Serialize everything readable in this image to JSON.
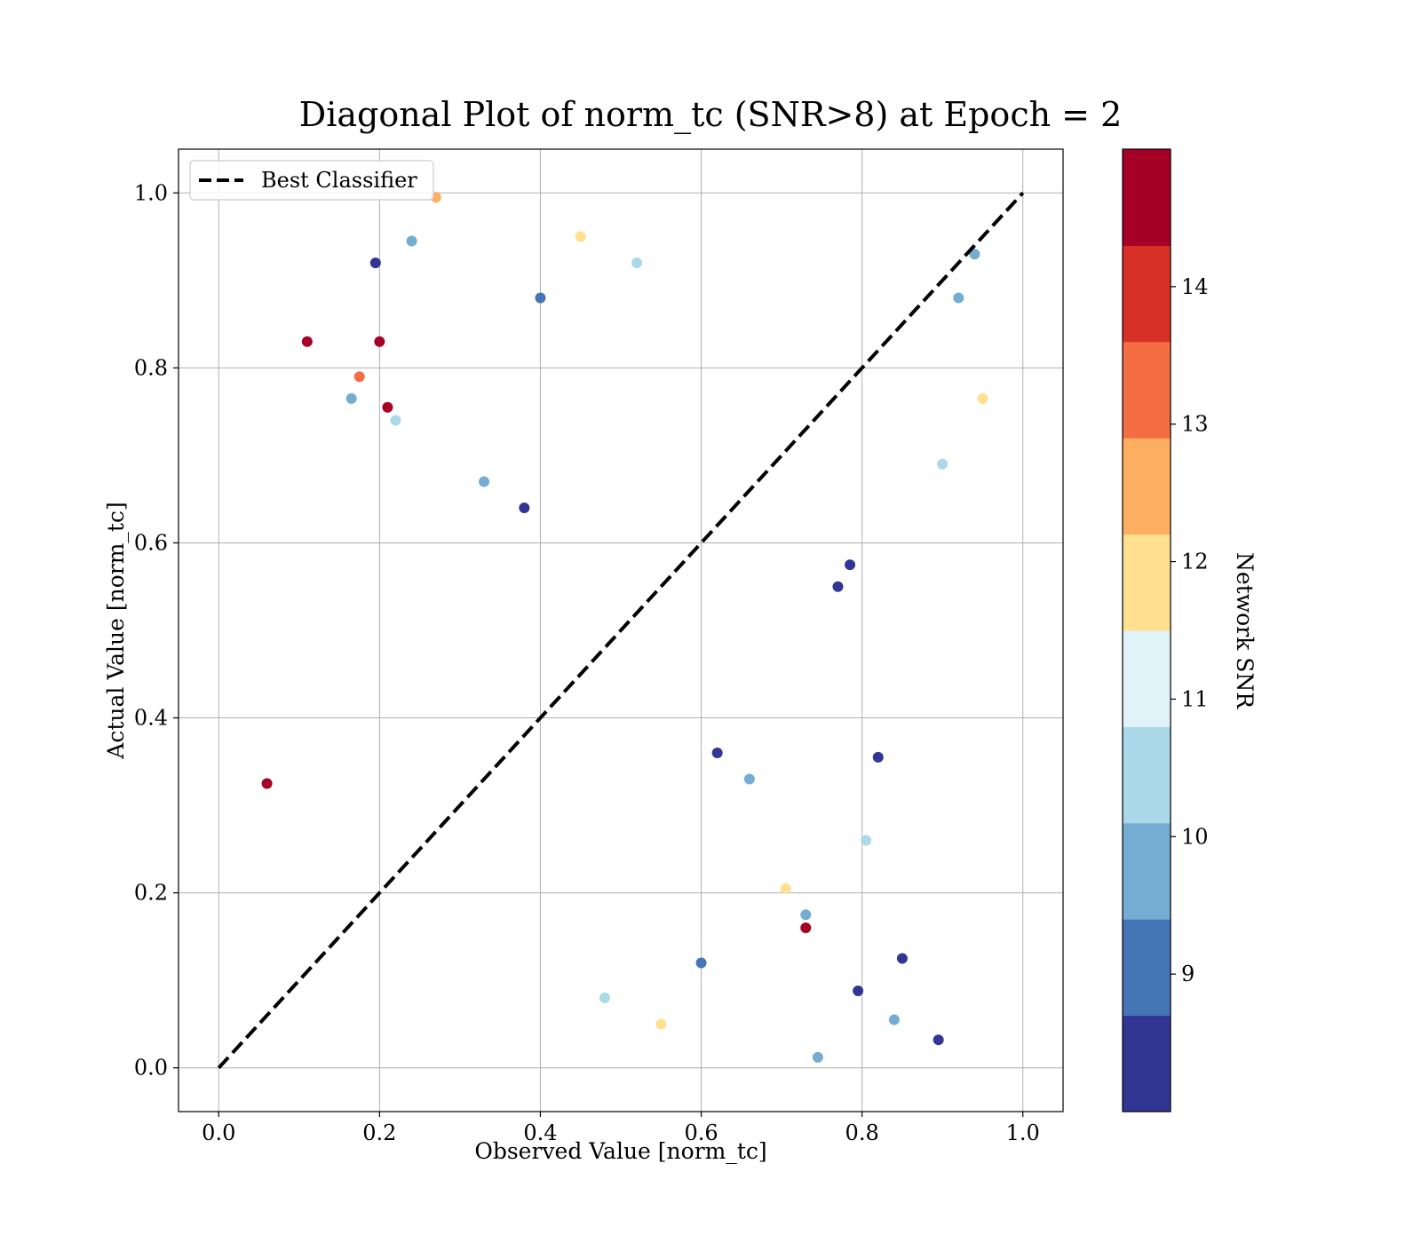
{
  "chart_data": {
    "type": "scatter",
    "title": "Diagonal Plot of norm_tc (SNR>8) at Epoch = 2",
    "xlabel": "Observed Value [norm_tc]",
    "ylabel": "Actual Value [norm_tc]",
    "xlim": [
      -0.05,
      1.05
    ],
    "ylim": [
      -0.05,
      1.05
    ],
    "xticks": [
      0.0,
      0.2,
      0.4,
      0.6,
      0.8,
      1.0
    ],
    "yticks": [
      0.0,
      0.2,
      0.4,
      0.6,
      0.8,
      1.0
    ],
    "xtick_labels": [
      "0.0",
      "0.2",
      "0.4",
      "0.6",
      "0.8",
      "1.0"
    ],
    "ytick_labels": [
      "0.0",
      "0.2",
      "0.4",
      "0.6",
      "0.8",
      "1.0"
    ],
    "grid": true,
    "legend": {
      "position": "top-left",
      "entries": [
        {
          "label": "Best Classifier",
          "style": "dashed",
          "color": "#000000"
        }
      ]
    },
    "reference_line": {
      "name": "Best Classifier",
      "points": [
        [
          0.0,
          0.0
        ],
        [
          1.0,
          1.0
        ]
      ]
    },
    "colorbar": {
      "label": "Network SNR",
      "range": [
        8,
        15
      ],
      "ticks": [
        9,
        10,
        11,
        12,
        13,
        14
      ],
      "tick_labels": [
        "9",
        "10",
        "11",
        "12",
        "13",
        "14"
      ],
      "bins": [
        {
          "from": 8.0,
          "to": 8.7,
          "color": "#313695"
        },
        {
          "from": 8.7,
          "to": 9.4,
          "color": "#4575b4"
        },
        {
          "from": 9.4,
          "to": 10.1,
          "color": "#74add1"
        },
        {
          "from": 10.1,
          "to": 10.8,
          "color": "#abd9e9"
        },
        {
          "from": 10.8,
          "to": 11.5,
          "color": "#e0f3f8"
        },
        {
          "from": 11.5,
          "to": 12.2,
          "color": "#fee090"
        },
        {
          "from": 12.2,
          "to": 12.9,
          "color": "#fdae61"
        },
        {
          "from": 12.9,
          "to": 13.6,
          "color": "#f46d43"
        },
        {
          "from": 13.6,
          "to": 14.3,
          "color": "#d73027"
        },
        {
          "from": 14.3,
          "to": 15.0,
          "color": "#a50026"
        }
      ]
    },
    "series": [
      {
        "points": [
          [
            0.06,
            0.325,
            14.8
          ],
          [
            0.11,
            0.83,
            14.8
          ],
          [
            0.2,
            0.83,
            14.8
          ],
          [
            0.21,
            0.755,
            14.8
          ],
          [
            0.85,
            0.125,
            8.3
          ],
          [
            0.895,
            0.032,
            8.3
          ],
          [
            0.795,
            0.088,
            8.3
          ],
          [
            0.82,
            0.355,
            8.3
          ],
          [
            0.84,
            0.055,
            9.8
          ],
          [
            0.745,
            0.012,
            9.8
          ],
          [
            0.92,
            0.88,
            9.8
          ],
          [
            0.805,
            0.26,
            10.3
          ],
          [
            0.705,
            0.205,
            12.0
          ],
          [
            0.195,
            0.92,
            8.5
          ],
          [
            0.24,
            0.945,
            9.8
          ],
          [
            0.27,
            0.995,
            12.6
          ],
          [
            0.73,
            0.175,
            9.8
          ],
          [
            0.73,
            0.16,
            14.8
          ],
          [
            0.785,
            0.575,
            8.5
          ],
          [
            0.77,
            0.55,
            8.3
          ],
          [
            0.22,
            0.74,
            10.2
          ],
          [
            0.165,
            0.765,
            9.8
          ],
          [
            0.175,
            0.79,
            13.2
          ],
          [
            0.95,
            0.765,
            12.1
          ],
          [
            0.9,
            0.69,
            10.3
          ],
          [
            0.94,
            0.93,
            9.9
          ],
          [
            0.38,
            0.64,
            8.3
          ],
          [
            0.62,
            0.36,
            8.3
          ],
          [
            0.66,
            0.33,
            9.6
          ],
          [
            0.33,
            0.67,
            9.6
          ],
          [
            0.48,
            0.08,
            10.6
          ],
          [
            0.52,
            0.92,
            10.6
          ],
          [
            0.55,
            0.05,
            12.0
          ],
          [
            0.45,
            0.95,
            12.0
          ],
          [
            0.6,
            0.12,
            8.8
          ],
          [
            0.4,
            0.88,
            8.8
          ]
        ]
      }
    ]
  }
}
